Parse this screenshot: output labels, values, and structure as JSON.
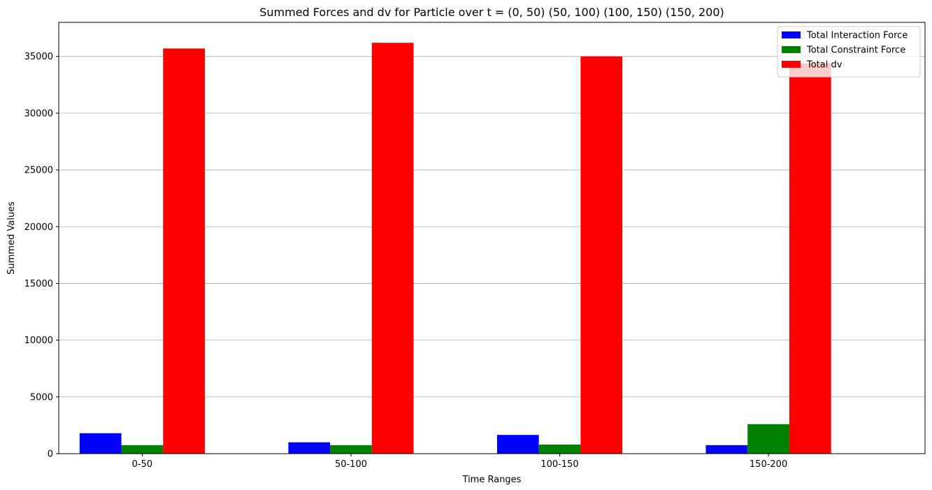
{
  "chart_data": {
    "type": "bar",
    "title": "Summed Forces and dv for Particle over t = (0, 50) (50, 100) (100, 150) (150, 200)",
    "xlabel": "Time Ranges",
    "ylabel": "Summed Values",
    "categories": [
      "0-50",
      "50-100",
      "100-150",
      "150-200"
    ],
    "series": [
      {
        "name": "Total Interaction Force",
        "color": "#0000ff",
        "values": [
          1800,
          1000,
          1650,
          750
        ]
      },
      {
        "name": "Total Constraint Force",
        "color": "#008000",
        "values": [
          750,
          750,
          800,
          2600
        ]
      },
      {
        "name": "Total dv",
        "color": "#ff0000",
        "values": [
          35700,
          36200,
          35000,
          34400
        ]
      }
    ],
    "ylim": [
      0,
      38000
    ],
    "yticks": [
      0,
      5000,
      10000,
      15000,
      20000,
      25000,
      30000,
      35000
    ],
    "ytick_labels": [
      "0",
      "5000",
      "10000",
      "15000",
      "20000",
      "25000",
      "30000",
      "35000"
    ],
    "grid": "y",
    "legend_position": "top-right"
  }
}
